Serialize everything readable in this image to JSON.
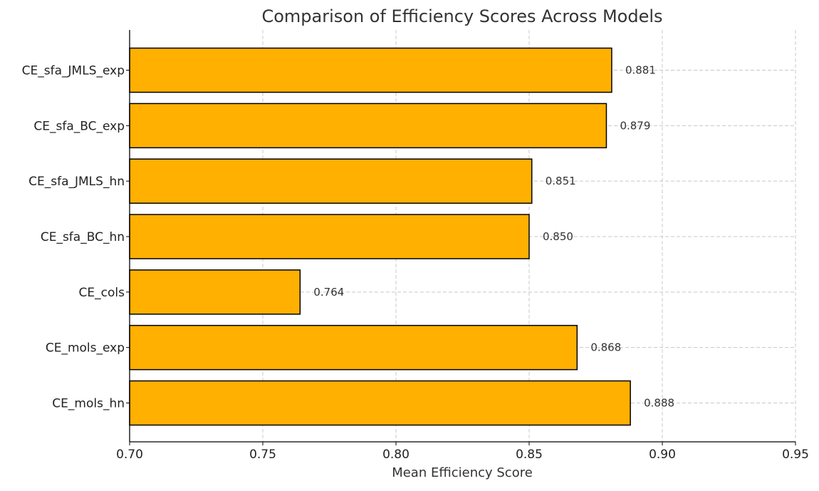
{
  "chart_data": {
    "type": "bar",
    "orientation": "horizontal",
    "title": "Comparison of Efficiency Scores Across Models",
    "xlabel": "Mean Efficiency Score",
    "ylabel": "",
    "xlim": [
      0.7,
      0.95
    ],
    "x_ticks": [
      "0.70",
      "0.75",
      "0.80",
      "0.85",
      "0.90",
      "0.95"
    ],
    "x_tick_values": [
      0.7,
      0.75,
      0.8,
      0.85,
      0.9,
      0.95
    ],
    "categories": [
      "CE_sfa_JMLS_exp",
      "CE_sfa_BC_exp",
      "CE_sfa_JMLS_hn",
      "CE_sfa_BC_hn",
      "CE_cols",
      "CE_mols_exp",
      "CE_mols_hn"
    ],
    "values": [
      0.881,
      0.879,
      0.851,
      0.85,
      0.764,
      0.868,
      0.888
    ],
    "data_labels": [
      "0.881",
      "0.879",
      "0.851",
      "0.850",
      "0.764",
      "0.868",
      "0.888"
    ],
    "grid": true,
    "legend": "none",
    "bar_color": "#FFB000",
    "bar_edge_color": "#000000"
  }
}
